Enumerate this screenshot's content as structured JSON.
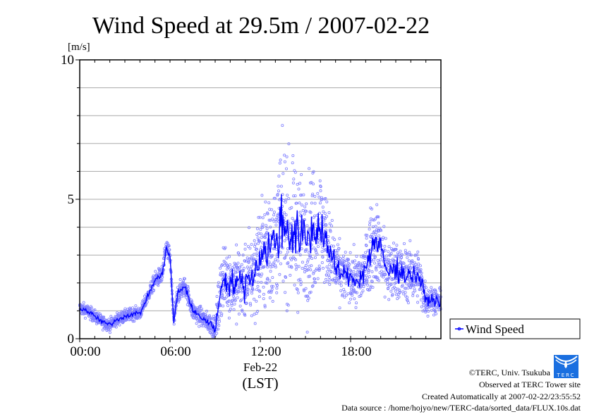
{
  "chart_data": {
    "type": "scatter",
    "title": "Wind Speed at 29.5m / 2007-02-22",
    "ylabel": "[m/s]",
    "xlabel": "(LST)",
    "x_date_label": "Feb-22",
    "ylim": [
      0,
      10
    ],
    "xlim_hours": [
      0,
      24
    ],
    "y_ticks": [
      "0",
      "5",
      "10"
    ],
    "y_grid_step": 1,
    "x_ticks": [
      {
        "hour": 0,
        "label": "00:00"
      },
      {
        "hour": 6,
        "label": "06:00"
      },
      {
        "hour": 12,
        "label": "12:00"
      },
      {
        "hour": 18,
        "label": "18:00"
      }
    ],
    "grid": true,
    "legend": {
      "label": "Wind Speed",
      "placement": "right-bottom-outside"
    },
    "series_color": "#0000ff",
    "point_color": "#8080ff",
    "mean_series": {
      "name": "Wind Speed",
      "hours": [
        0,
        0.5,
        1,
        1.5,
        2,
        2.5,
        3,
        3.5,
        4,
        4.5,
        5,
        5.5,
        5.75,
        6,
        6.25,
        6.5,
        7,
        7.5,
        8,
        8.5,
        9,
        9.25,
        9.5,
        10,
        10.5,
        11,
        11.5,
        12,
        12.5,
        13,
        13.5,
        14,
        14.5,
        15,
        15.5,
        16,
        16.5,
        17,
        17.5,
        18,
        18.5,
        19,
        19.5,
        20,
        20.5,
        21,
        21.5,
        22,
        22.5,
        23,
        23.5,
        24
      ],
      "values": [
        1.1,
        1.0,
        0.8,
        0.6,
        0.5,
        0.7,
        0.8,
        0.9,
        0.9,
        1.5,
        2.1,
        2.3,
        3.3,
        2.9,
        0.6,
        1.6,
        1.9,
        1.0,
        0.8,
        0.6,
        0.4,
        1.2,
        2.2,
        2.0,
        2.0,
        2.0,
        2.3,
        3.0,
        3.2,
        3.5,
        4.2,
        3.8,
        3.7,
        3.5,
        3.8,
        4.1,
        3.3,
        2.5,
        2.3,
        2.2,
        2.1,
        2.5,
        3.5,
        3.2,
        2.3,
        2.6,
        2.3,
        2.3,
        2.3,
        1.4,
        1.4,
        1.3
      ],
      "spread": [
        0.2,
        0.2,
        0.2,
        0.2,
        0.2,
        0.2,
        0.2,
        0.2,
        0.2,
        0.2,
        0.25,
        0.3,
        0.3,
        0.3,
        0.3,
        0.3,
        0.3,
        0.3,
        0.3,
        0.3,
        0.4,
        0.8,
        1.0,
        1.0,
        1.1,
        1.2,
        1.4,
        1.6,
        1.8,
        2.0,
        2.2,
        2.0,
        2.0,
        2.0,
        2.0,
        1.8,
        1.3,
        1.0,
        0.8,
        0.7,
        0.8,
        1.0,
        1.3,
        1.2,
        1.0,
        1.0,
        0.9,
        0.8,
        0.8,
        0.5,
        0.4,
        0.4
      ]
    }
  },
  "footer": {
    "copyright": "©TERC, Univ. Tsukuba",
    "observed": "Observed at TERC Tower site",
    "created": "Created Automatically at 2007-02-22/23:55:52",
    "source": "Data source : /home/hojyo/new/TERC-data/sorted_data/FLUX.10s.dat",
    "logo_text": "TERC"
  }
}
